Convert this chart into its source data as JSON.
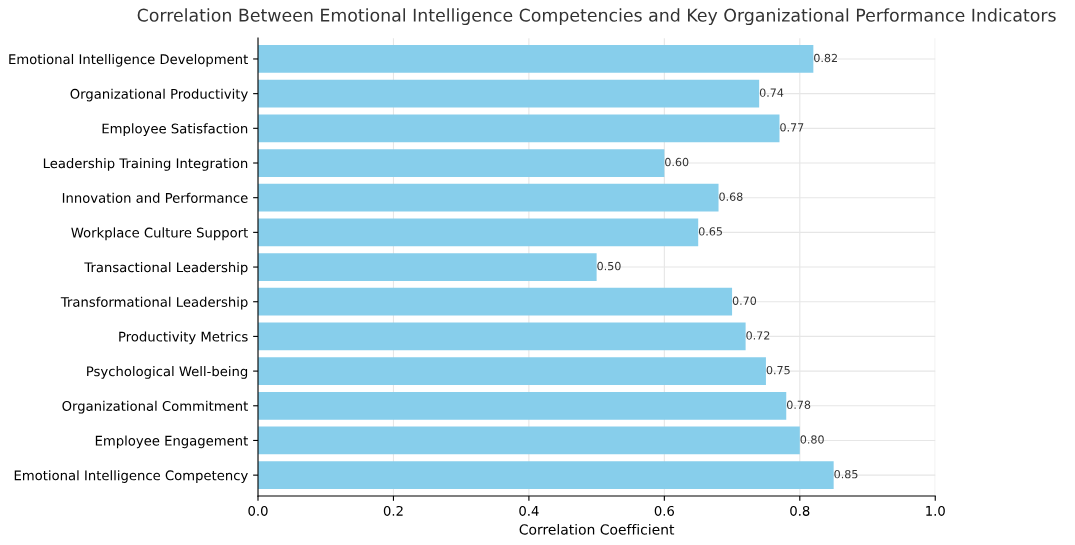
{
  "chart_data": {
    "type": "bar",
    "orientation": "horizontal",
    "title": "Correlation Between Emotional Intelligence Competencies and Key Organizational Performance Indicators",
    "xlabel": "Correlation Coefficient",
    "categories": [
      "Emotional Intelligence Development",
      "Organizational Productivity",
      "Employee Satisfaction",
      "Leadership Training Integration",
      "Innovation and Performance",
      "Workplace Culture Support",
      "Transactional Leadership",
      "Transformational Leadership",
      "Productivity Metrics",
      "Psychological Well-being",
      "Organizational Commitment",
      "Employee Engagement",
      "Emotional Intelligence Competency"
    ],
    "values": [
      0.82,
      0.74,
      0.77,
      0.6,
      0.68,
      0.65,
      0.5,
      0.7,
      0.72,
      0.75,
      0.78,
      0.8,
      0.85
    ],
    "color": "#87ceeb",
    "value_labels": [
      "0.82",
      "0.74",
      "0.77",
      "0.60",
      "0.68",
      "0.65",
      "0.50",
      "0.70",
      "0.72",
      "0.75",
      "0.78",
      "0.80",
      "0.85"
    ],
    "xlim": [
      0.0,
      1.0
    ],
    "xticks": [
      {
        "value": 0.0,
        "label": "0.0"
      },
      0.2,
      0.4,
      0.6,
      0.8,
      {
        "value": 1.0,
        "label": "1.0"
      }
    ],
    "grid": true
  }
}
